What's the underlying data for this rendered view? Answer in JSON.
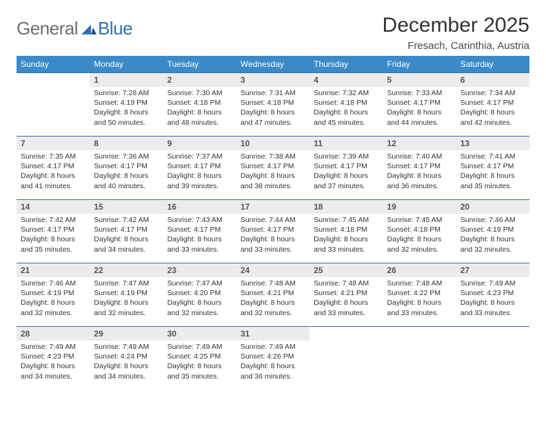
{
  "brand": {
    "word1": "General",
    "word2": "Blue"
  },
  "title": "December 2025",
  "location": "Fresach, Carinthia, Austria",
  "colors": {
    "header_bg": "#3a8ac9",
    "header_fg": "#ffffff",
    "rule": "#2f6fae",
    "daynum_bg": "#ececec",
    "logo_gray": "#6e6e6e",
    "logo_blue": "#2f6fae"
  },
  "day_headers": [
    "Sunday",
    "Monday",
    "Tuesday",
    "Wednesday",
    "Thursday",
    "Friday",
    "Saturday"
  ],
  "weeks": [
    [
      {
        "n": "",
        "sunrise": "",
        "sunset": "",
        "dl1": "",
        "dl2": "",
        "empty": true
      },
      {
        "n": "1",
        "sunrise": "Sunrise: 7:28 AM",
        "sunset": "Sunset: 4:19 PM",
        "dl1": "Daylight: 8 hours",
        "dl2": "and 50 minutes."
      },
      {
        "n": "2",
        "sunrise": "Sunrise: 7:30 AM",
        "sunset": "Sunset: 4:18 PM",
        "dl1": "Daylight: 8 hours",
        "dl2": "and 48 minutes."
      },
      {
        "n": "3",
        "sunrise": "Sunrise: 7:31 AM",
        "sunset": "Sunset: 4:18 PM",
        "dl1": "Daylight: 8 hours",
        "dl2": "and 47 minutes."
      },
      {
        "n": "4",
        "sunrise": "Sunrise: 7:32 AM",
        "sunset": "Sunset: 4:18 PM",
        "dl1": "Daylight: 8 hours",
        "dl2": "and 45 minutes."
      },
      {
        "n": "5",
        "sunrise": "Sunrise: 7:33 AM",
        "sunset": "Sunset: 4:17 PM",
        "dl1": "Daylight: 8 hours",
        "dl2": "and 44 minutes."
      },
      {
        "n": "6",
        "sunrise": "Sunrise: 7:34 AM",
        "sunset": "Sunset: 4:17 PM",
        "dl1": "Daylight: 8 hours",
        "dl2": "and 42 minutes."
      }
    ],
    [
      {
        "n": "7",
        "sunrise": "Sunrise: 7:35 AM",
        "sunset": "Sunset: 4:17 PM",
        "dl1": "Daylight: 8 hours",
        "dl2": "and 41 minutes."
      },
      {
        "n": "8",
        "sunrise": "Sunrise: 7:36 AM",
        "sunset": "Sunset: 4:17 PM",
        "dl1": "Daylight: 8 hours",
        "dl2": "and 40 minutes."
      },
      {
        "n": "9",
        "sunrise": "Sunrise: 7:37 AM",
        "sunset": "Sunset: 4:17 PM",
        "dl1": "Daylight: 8 hours",
        "dl2": "and 39 minutes."
      },
      {
        "n": "10",
        "sunrise": "Sunrise: 7:38 AM",
        "sunset": "Sunset: 4:17 PM",
        "dl1": "Daylight: 8 hours",
        "dl2": "and 38 minutes."
      },
      {
        "n": "11",
        "sunrise": "Sunrise: 7:39 AM",
        "sunset": "Sunset: 4:17 PM",
        "dl1": "Daylight: 8 hours",
        "dl2": "and 37 minutes."
      },
      {
        "n": "12",
        "sunrise": "Sunrise: 7:40 AM",
        "sunset": "Sunset: 4:17 PM",
        "dl1": "Daylight: 8 hours",
        "dl2": "and 36 minutes."
      },
      {
        "n": "13",
        "sunrise": "Sunrise: 7:41 AM",
        "sunset": "Sunset: 4:17 PM",
        "dl1": "Daylight: 8 hours",
        "dl2": "and 35 minutes."
      }
    ],
    [
      {
        "n": "14",
        "sunrise": "Sunrise: 7:42 AM",
        "sunset": "Sunset: 4:17 PM",
        "dl1": "Daylight: 8 hours",
        "dl2": "and 35 minutes."
      },
      {
        "n": "15",
        "sunrise": "Sunrise: 7:42 AM",
        "sunset": "Sunset: 4:17 PM",
        "dl1": "Daylight: 8 hours",
        "dl2": "and 34 minutes."
      },
      {
        "n": "16",
        "sunrise": "Sunrise: 7:43 AM",
        "sunset": "Sunset: 4:17 PM",
        "dl1": "Daylight: 8 hours",
        "dl2": "and 33 minutes."
      },
      {
        "n": "17",
        "sunrise": "Sunrise: 7:44 AM",
        "sunset": "Sunset: 4:17 PM",
        "dl1": "Daylight: 8 hours",
        "dl2": "and 33 minutes."
      },
      {
        "n": "18",
        "sunrise": "Sunrise: 7:45 AM",
        "sunset": "Sunset: 4:18 PM",
        "dl1": "Daylight: 8 hours",
        "dl2": "and 33 minutes."
      },
      {
        "n": "19",
        "sunrise": "Sunrise: 7:45 AM",
        "sunset": "Sunset: 4:18 PM",
        "dl1": "Daylight: 8 hours",
        "dl2": "and 32 minutes."
      },
      {
        "n": "20",
        "sunrise": "Sunrise: 7:46 AM",
        "sunset": "Sunset: 4:19 PM",
        "dl1": "Daylight: 8 hours",
        "dl2": "and 32 minutes."
      }
    ],
    [
      {
        "n": "21",
        "sunrise": "Sunrise: 7:46 AM",
        "sunset": "Sunset: 4:19 PM",
        "dl1": "Daylight: 8 hours",
        "dl2": "and 32 minutes."
      },
      {
        "n": "22",
        "sunrise": "Sunrise: 7:47 AM",
        "sunset": "Sunset: 4:19 PM",
        "dl1": "Daylight: 8 hours",
        "dl2": "and 32 minutes."
      },
      {
        "n": "23",
        "sunrise": "Sunrise: 7:47 AM",
        "sunset": "Sunset: 4:20 PM",
        "dl1": "Daylight: 8 hours",
        "dl2": "and 32 minutes."
      },
      {
        "n": "24",
        "sunrise": "Sunrise: 7:48 AM",
        "sunset": "Sunset: 4:21 PM",
        "dl1": "Daylight: 8 hours",
        "dl2": "and 32 minutes."
      },
      {
        "n": "25",
        "sunrise": "Sunrise: 7:48 AM",
        "sunset": "Sunset: 4:21 PM",
        "dl1": "Daylight: 8 hours",
        "dl2": "and 33 minutes."
      },
      {
        "n": "26",
        "sunrise": "Sunrise: 7:48 AM",
        "sunset": "Sunset: 4:22 PM",
        "dl1": "Daylight: 8 hours",
        "dl2": "and 33 minutes."
      },
      {
        "n": "27",
        "sunrise": "Sunrise: 7:49 AM",
        "sunset": "Sunset: 4:23 PM",
        "dl1": "Daylight: 8 hours",
        "dl2": "and 33 minutes."
      }
    ],
    [
      {
        "n": "28",
        "sunrise": "Sunrise: 7:49 AM",
        "sunset": "Sunset: 4:23 PM",
        "dl1": "Daylight: 8 hours",
        "dl2": "and 34 minutes."
      },
      {
        "n": "29",
        "sunrise": "Sunrise: 7:49 AM",
        "sunset": "Sunset: 4:24 PM",
        "dl1": "Daylight: 8 hours",
        "dl2": "and 34 minutes."
      },
      {
        "n": "30",
        "sunrise": "Sunrise: 7:49 AM",
        "sunset": "Sunset: 4:25 PM",
        "dl1": "Daylight: 8 hours",
        "dl2": "and 35 minutes."
      },
      {
        "n": "31",
        "sunrise": "Sunrise: 7:49 AM",
        "sunset": "Sunset: 4:26 PM",
        "dl1": "Daylight: 8 hours",
        "dl2": "and 36 minutes."
      },
      {
        "n": "",
        "sunrise": "",
        "sunset": "",
        "dl1": "",
        "dl2": "",
        "empty": true
      },
      {
        "n": "",
        "sunrise": "",
        "sunset": "",
        "dl1": "",
        "dl2": "",
        "empty": true
      },
      {
        "n": "",
        "sunrise": "",
        "sunset": "",
        "dl1": "",
        "dl2": "",
        "empty": true
      }
    ]
  ]
}
